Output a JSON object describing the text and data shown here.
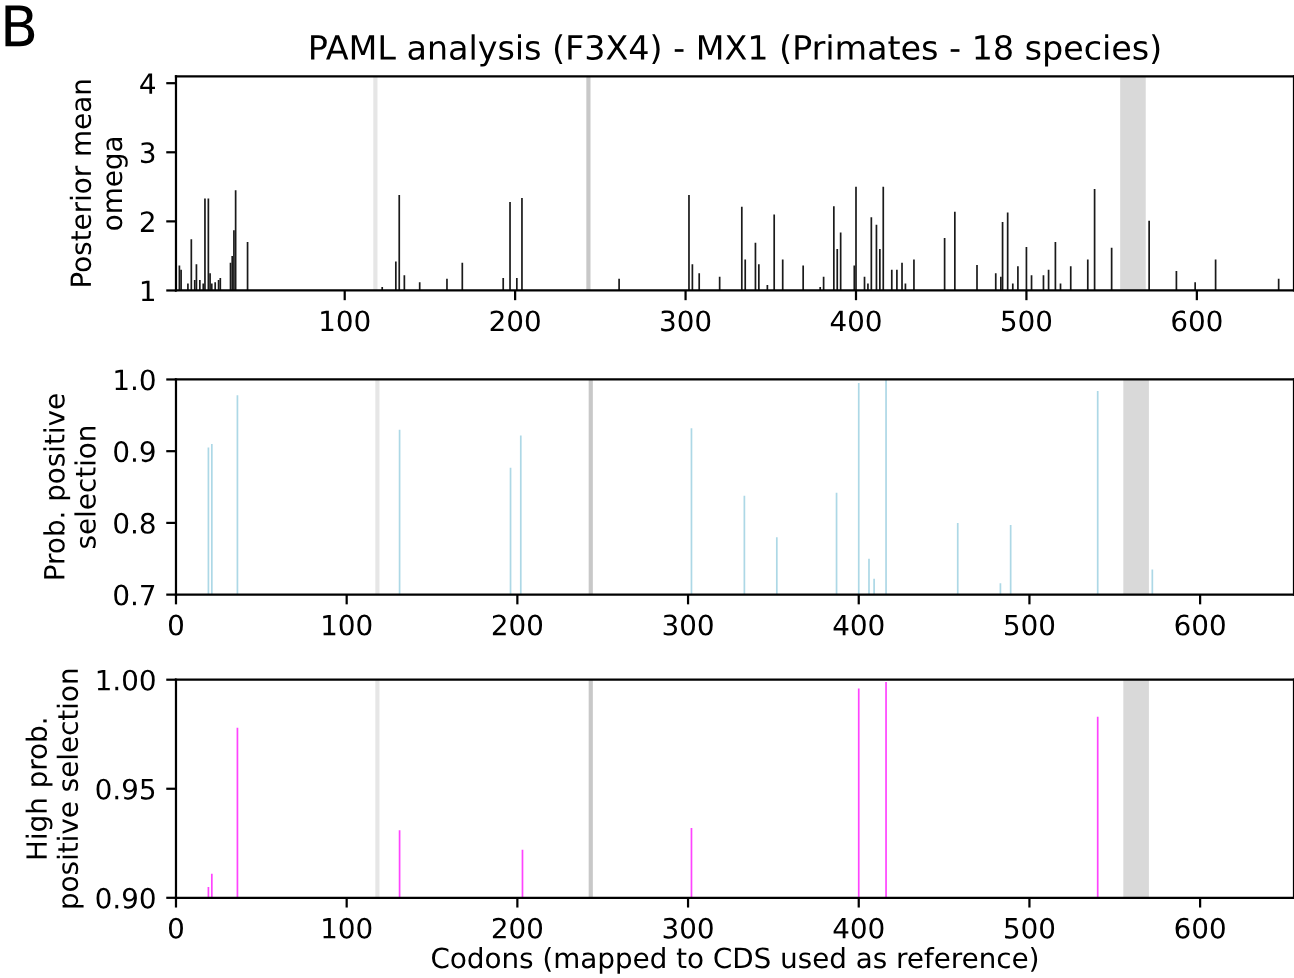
{
  "chart_data": [
    {
      "type": "bar",
      "title": "PAML analysis (F3X4) - MX1 (Primates - 18 species)",
      "ylabel": "Posterior mean\nomega",
      "annotations": [
        "B"
      ],
      "x": [
        3,
        4,
        8,
        10,
        12,
        13,
        15,
        17,
        18,
        20,
        21,
        22,
        24,
        26,
        27,
        33,
        34,
        35,
        36,
        43,
        122,
        130,
        132,
        135,
        144,
        160,
        169,
        193,
        197,
        201,
        204,
        261,
        302,
        304,
        308,
        320,
        333,
        335,
        341,
        343,
        348,
        352,
        357,
        369,
        379,
        381,
        387,
        389,
        391,
        399,
        400,
        405,
        407,
        409,
        412,
        414,
        416,
        421,
        424,
        427,
        429,
        434,
        452,
        458,
        471,
        482,
        485,
        486,
        489,
        492,
        495,
        500,
        503,
        510,
        513,
        517,
        520,
        526,
        536,
        540,
        550,
        572,
        588,
        599,
        611,
        648
      ],
      "series": [
        {
          "color": "#1a1a1a",
          "values": [
            1.36,
            1.3,
            1.1,
            1.74,
            1.15,
            1.38,
            1.15,
            1.1,
            2.33,
            2.33,
            1.25,
            1.1,
            1.12,
            1.15,
            1.18,
            1.4,
            1.5,
            1.87,
            2.45,
            1.7,
            1.05,
            1.42,
            2.38,
            1.22,
            1.12,
            1.17,
            1.4,
            1.18,
            2.28,
            1.18,
            2.34,
            1.17,
            2.38,
            1.38,
            1.25,
            1.2,
            2.21,
            1.45,
            1.69,
            1.38,
            1.08,
            2.1,
            1.45,
            1.36,
            1.05,
            1.2,
            2.22,
            1.6,
            1.84,
            1.36,
            2.5,
            1.2,
            1.1,
            2.06,
            1.95,
            1.6,
            2.5,
            1.3,
            1.3,
            1.4,
            1.1,
            1.45,
            1.76,
            2.14,
            1.37,
            1.25,
            1.2,
            1.99,
            2.13,
            1.1,
            1.35,
            1.63,
            1.22,
            1.22,
            1.3,
            1.7,
            1.1,
            1.35,
            1.45,
            2.47,
            1.62,
            2.01,
            1.28,
            1.12,
            1.45,
            1.17
          ]
        }
      ],
      "xlim": [
        1,
        657
      ],
      "xticks": [
        100,
        200,
        300,
        400,
        500,
        600
      ],
      "ylim": [
        1,
        4.1
      ],
      "yticks": [
        1,
        2,
        3,
        4
      ],
      "grid": false,
      "legend": false,
      "ref_lines": [
        {
          "axis": "x",
          "value": 118,
          "color": "#e6e6e6"
        },
        {
          "axis": "x",
          "value": 243,
          "color": "#c8c8c8"
        }
      ],
      "bands": [
        {
          "axis": "x",
          "from": 555,
          "to": 570,
          "color": "#d9d9d9"
        }
      ]
    },
    {
      "type": "bar",
      "ylabel": "Prob. positive\nselection",
      "x": [
        19,
        21,
        36,
        131,
        196,
        202,
        302,
        333,
        352,
        387,
        400,
        406,
        409,
        416,
        458,
        483,
        489,
        540,
        572
      ],
      "series": [
        {
          "color": "#add8e6",
          "values": [
            0.905,
            0.91,
            0.978,
            0.93,
            0.877,
            0.922,
            0.932,
            0.838,
            0.78,
            0.842,
            0.995,
            0.75,
            0.722,
            1.0,
            0.8,
            0.716,
            0.797,
            0.984,
            0.735
          ]
        }
      ],
      "xlim": [
        0,
        655
      ],
      "xticks": [
        0,
        100,
        200,
        300,
        400,
        500,
        600
      ],
      "ylim": [
        0.7,
        1.0
      ],
      "yticks": [
        {
          "value": 0.7,
          "label": "0.7"
        },
        {
          "value": 0.8,
          "label": "0.8"
        },
        {
          "value": 0.9,
          "label": "0.9"
        },
        {
          "value": 1.0,
          "label": "1.0"
        }
      ],
      "grid": false,
      "legend": false,
      "ref_lines": [
        {
          "axis": "x",
          "value": 118,
          "color": "#e6e6e6"
        },
        {
          "axis": "x",
          "value": 243,
          "color": "#c8c8c8"
        }
      ],
      "bands": [
        {
          "axis": "x",
          "from": 555,
          "to": 570,
          "color": "#d9d9d9"
        }
      ]
    },
    {
      "type": "bar",
      "ylabel": "High prob.\npositive selection",
      "xlabel": "Codons (mapped to CDS used as reference)",
      "x": [
        19,
        21,
        36,
        131,
        203,
        302,
        400,
        416,
        540
      ],
      "series": [
        {
          "color": "#ff44ff",
          "values": [
            0.905,
            0.911,
            0.978,
            0.931,
            0.922,
            0.932,
            0.996,
            0.999,
            0.983
          ]
        }
      ],
      "xlim": [
        0,
        655
      ],
      "xticks": [
        0,
        100,
        200,
        300,
        400,
        500,
        600
      ],
      "ylim": [
        0.9,
        1.0
      ],
      "yticks": [
        {
          "value": 0.9,
          "label": "0.90"
        },
        {
          "value": 0.95,
          "label": "0.95"
        },
        {
          "value": 1.0,
          "label": "1.00"
        }
      ],
      "grid": false,
      "legend": false,
      "ref_lines": [
        {
          "axis": "x",
          "value": 118,
          "color": "#e6e6e6"
        },
        {
          "axis": "x",
          "value": 243,
          "color": "#c8c8c8"
        }
      ],
      "bands": [
        {
          "axis": "x",
          "from": 555,
          "to": 570,
          "color": "#d9d9d9"
        }
      ]
    }
  ]
}
